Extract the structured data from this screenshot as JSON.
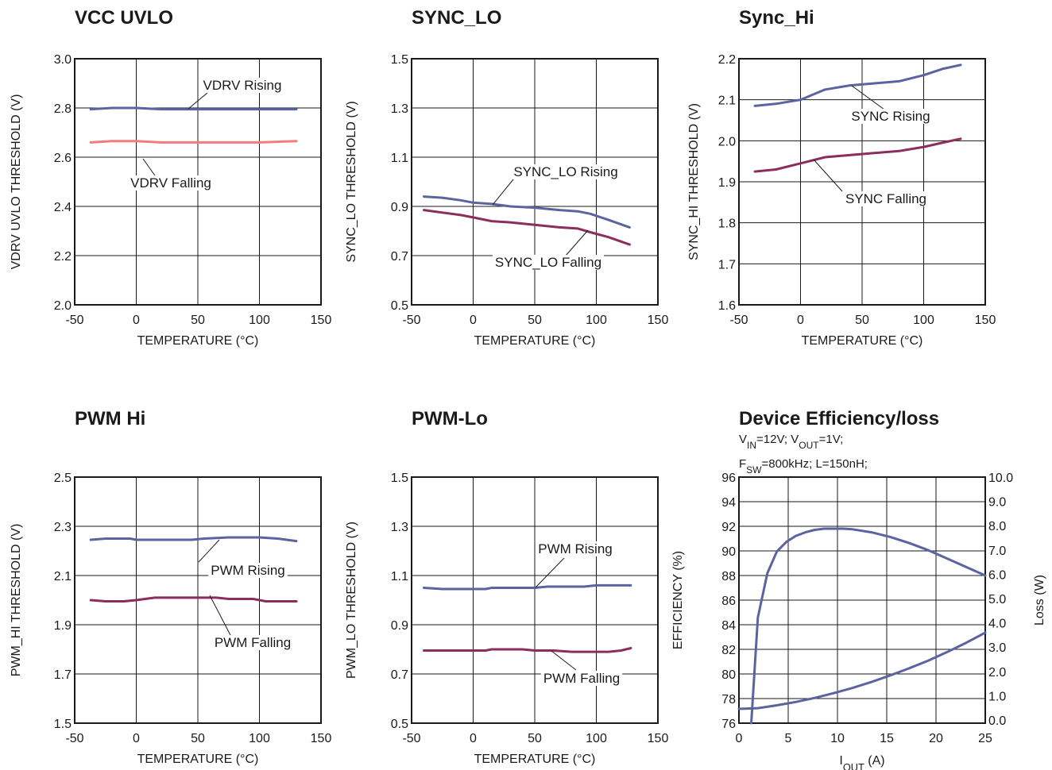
{
  "chart_data": [
    {
      "type": "line",
      "title": "VCC UVLO",
      "xlabel": "TEMPERATURE (°C)",
      "ylabel": "VDRV UVLO THRESHOLD (V)",
      "xlim": [
        -50,
        150
      ],
      "ylim": [
        2.0,
        3.0
      ],
      "xticks": [
        "-50",
        "0",
        "50",
        "100",
        "150"
      ],
      "yticks": [
        "2.0",
        "2.2",
        "2.4",
        "2.6",
        "2.8",
        "3.0"
      ],
      "grid": true,
      "series": [
        {
          "name": "VDRV Rising",
          "color": "#5b63a0",
          "x": [
            -37,
            -20,
            0,
            20,
            50,
            80,
            100,
            130
          ],
          "y": [
            2.795,
            2.8,
            2.8,
            2.795,
            2.795,
            2.795,
            2.795,
            2.795
          ]
        },
        {
          "name": "VDRV Falling",
          "color": "#f07c7c",
          "x": [
            -37,
            -20,
            0,
            20,
            50,
            80,
            100,
            130
          ],
          "y": [
            2.66,
            2.665,
            2.665,
            2.66,
            2.66,
            2.66,
            2.66,
            2.665
          ]
        }
      ]
    },
    {
      "type": "line",
      "title": "SYNC_LO",
      "xlabel": "TEMPERATURE (°C)",
      "ylabel": "SYNC_LO  THRESHOLD (V)",
      "xlim": [
        -50,
        150
      ],
      "ylim": [
        0.5,
        1.5
      ],
      "xticks": [
        "-50",
        "0",
        "50",
        "100",
        "150"
      ],
      "yticks": [
        "0.5",
        "0.7",
        "0.9",
        "1.1",
        "1.3",
        "1.5"
      ],
      "grid": true,
      "series": [
        {
          "name": "SYNC_LO Rising",
          "color": "#5b63a0",
          "x": [
            -40,
            -25,
            -10,
            0,
            15,
            30,
            50,
            70,
            85,
            95,
            110,
            127
          ],
          "y": [
            0.94,
            0.935,
            0.925,
            0.915,
            0.91,
            0.9,
            0.895,
            0.885,
            0.88,
            0.87,
            0.845,
            0.815
          ]
        },
        {
          "name": "SYNC_LO Falling",
          "color": "#8b2d5d",
          "x": [
            -40,
            -25,
            -10,
            0,
            15,
            30,
            50,
            70,
            85,
            95,
            110,
            127
          ],
          "y": [
            0.885,
            0.875,
            0.865,
            0.855,
            0.84,
            0.835,
            0.825,
            0.815,
            0.81,
            0.795,
            0.775,
            0.745
          ]
        }
      ]
    },
    {
      "type": "line",
      "title": "Sync_Hi",
      "xlabel": "TEMPERATURE (°C)",
      "ylabel": "SYNC_HI  THRESHOLD (V)",
      "xlim": [
        -50,
        150
      ],
      "ylim": [
        1.6,
        2.2
      ],
      "xticks": [
        "-50",
        "0",
        "50",
        "100",
        "150"
      ],
      "yticks": [
        "1.6",
        "1.7",
        "1.8",
        "1.9",
        "2.0",
        "2.1",
        "2.2"
      ],
      "grid": true,
      "series": [
        {
          "name": "SYNC Rising",
          "color": "#5b63a0",
          "x": [
            -37,
            -20,
            0,
            20,
            40,
            60,
            80,
            100,
            115,
            130
          ],
          "y": [
            2.085,
            2.09,
            2.1,
            2.125,
            2.135,
            2.14,
            2.145,
            2.16,
            2.175,
            2.185
          ]
        },
        {
          "name": "SYNC Falling",
          "color": "#8b2d5d",
          "x": [
            -37,
            -20,
            0,
            20,
            40,
            60,
            80,
            100,
            115,
            130
          ],
          "y": [
            1.925,
            1.93,
            1.945,
            1.96,
            1.965,
            1.97,
            1.975,
            1.985,
            1.995,
            2.005
          ]
        }
      ]
    },
    {
      "type": "line",
      "title": "PWM Hi",
      "xlabel": "TEMPERATURE (°C)",
      "ylabel": "PWM_HI THRESHOLD (V)",
      "xlim": [
        -50,
        150
      ],
      "ylim": [
        1.5,
        2.5
      ],
      "xticks": [
        "-50",
        "0",
        "50",
        "100",
        "150"
      ],
      "yticks": [
        "1.5",
        "1.7",
        "1.9",
        "2.1",
        "2.3",
        "2.5"
      ],
      "grid": true,
      "series": [
        {
          "name": "PWM Rising",
          "color": "#5b63a0",
          "x": [
            -37,
            -25,
            -5,
            0,
            25,
            45,
            55,
            75,
            100,
            115,
            130
          ],
          "y": [
            2.245,
            2.25,
            2.25,
            2.245,
            2.245,
            2.245,
            2.25,
            2.255,
            2.255,
            2.25,
            2.24
          ]
        },
        {
          "name": "PWM Falling",
          "color": "#8b2d5d",
          "x": [
            -37,
            -25,
            -10,
            0,
            15,
            35,
            65,
            75,
            95,
            105,
            130
          ],
          "y": [
            2.0,
            1.995,
            1.995,
            2.0,
            2.01,
            2.01,
            2.01,
            2.005,
            2.005,
            1.995,
            1.995
          ]
        }
      ]
    },
    {
      "type": "line",
      "title": "PWM-Lo",
      "xlabel": "TEMPERATURE (°C)",
      "ylabel": "PWM_LO THRESHOLD (V)",
      "xlim": [
        -50,
        150
      ],
      "ylim": [
        0.5,
        1.5
      ],
      "xticks": [
        "-50",
        "0",
        "50",
        "100",
        "150"
      ],
      "yticks": [
        "0.5",
        "0.7",
        "0.9",
        "1.1",
        "1.3",
        "1.5"
      ],
      "grid": true,
      "series": [
        {
          "name": "PWM Rising",
          "color": "#5b63a0",
          "x": [
            -40,
            -25,
            10,
            15,
            50,
            60,
            90,
            100,
            128
          ],
          "y": [
            1.05,
            1.045,
            1.045,
            1.05,
            1.05,
            1.055,
            1.055,
            1.06,
            1.06
          ]
        },
        {
          "name": "PWM Falling",
          "color": "#8b2d5d",
          "x": [
            -40,
            10,
            15,
            40,
            50,
            65,
            80,
            110,
            120,
            128
          ],
          "y": [
            0.795,
            0.795,
            0.8,
            0.8,
            0.795,
            0.795,
            0.79,
            0.79,
            0.795,
            0.805
          ]
        }
      ]
    },
    {
      "type": "line",
      "title": "Device Efficiency/loss",
      "subtitle_lines": [
        [
          {
            "t": "V"
          },
          {
            "t": "IN",
            "sub": true
          },
          {
            "t": "=12V; V"
          },
          {
            "t": "OUT",
            "sub": true
          },
          {
            "t": "=1V;"
          }
        ],
        [
          {
            "t": "F"
          },
          {
            "t": "SW",
            "sub": true
          },
          {
            "t": "=800kHz; L=150nH;"
          }
        ]
      ],
      "xlabel_parts": [
        {
          "t": "I"
        },
        {
          "t": "OUT",
          "sub": true
        },
        {
          "t": " (A)"
        }
      ],
      "ylabel": "EFFICIENCY (%)",
      "y2label": "Loss (W)",
      "xlim": [
        0,
        26
      ],
      "ylim": [
        75.5,
        96
      ],
      "y2lim": [
        -0.33,
        10
      ],
      "xticks": [
        "0",
        "5",
        "10",
        "15",
        "20",
        "25"
      ],
      "yticks": [
        "76",
        "78",
        "80",
        "82",
        "84",
        "86",
        "88",
        "90",
        "92",
        "94",
        "96"
      ],
      "y2ticks": [
        "0.0",
        "1.0",
        "2.0",
        "3.0",
        "4.0",
        "5.0",
        "6.0",
        "7.0",
        "8.0",
        "9.0",
        "10.0"
      ],
      "grid": true,
      "series": [
        {
          "name": "Efficiency",
          "color": "#5b63a0",
          "axis": "left",
          "x": [
            1.3,
            2,
            3,
            4,
            5,
            6,
            7,
            8,
            9,
            10,
            11,
            12,
            14,
            16,
            18,
            20,
            22,
            24,
            26
          ],
          "y": [
            75.5,
            84.3,
            88.0,
            89.8,
            90.6,
            91.1,
            91.4,
            91.6,
            91.7,
            91.7,
            91.7,
            91.65,
            91.4,
            91.0,
            90.5,
            89.9,
            89.2,
            88.5,
            87.8
          ]
        },
        {
          "name": "Loss",
          "color": "#5b63a0",
          "axis": "right",
          "x": [
            0,
            2,
            4,
            6,
            8,
            10,
            12,
            14,
            16,
            18,
            20,
            22,
            24,
            26
          ],
          "y": [
            0.27,
            0.3,
            0.42,
            0.56,
            0.73,
            0.93,
            1.15,
            1.4,
            1.68,
            1.98,
            2.3,
            2.66,
            3.05,
            3.47
          ]
        }
      ]
    }
  ]
}
